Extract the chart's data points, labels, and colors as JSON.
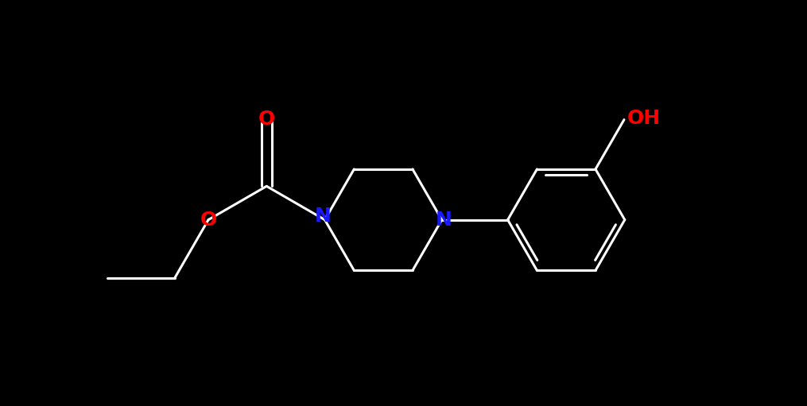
{
  "background_color": "#000000",
  "bond_color": "#ffffff",
  "N_color": "#1a1aff",
  "O_color": "#ff0000",
  "line_width": 2.2,
  "font_size_N": 18,
  "font_size_O": 18,
  "font_size_OH": 18,
  "figsize": [
    10.15,
    5.11
  ],
  "dpi": 100,
  "xlim": [
    -1.0,
    11.0
  ],
  "ylim": [
    0.5,
    6.0
  ]
}
